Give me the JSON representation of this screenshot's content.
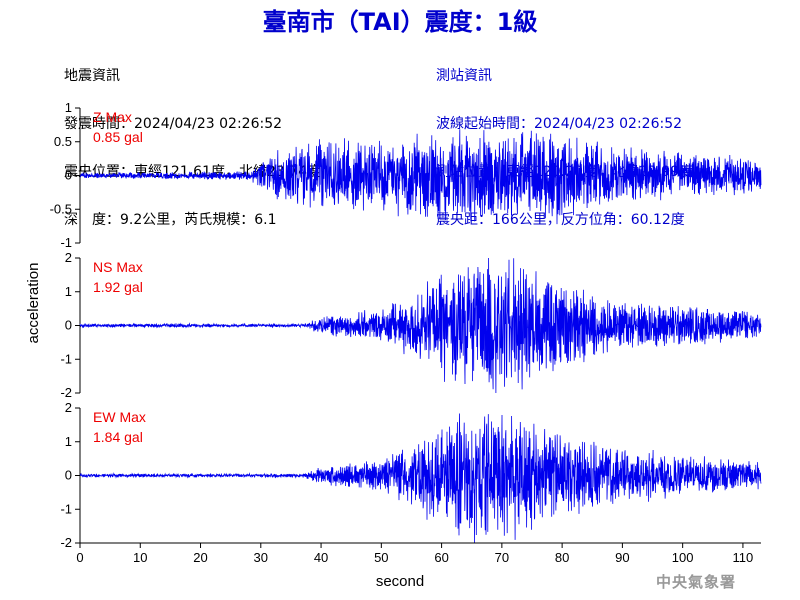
{
  "title": "臺南市（TAI）震度：1級",
  "earthquake_info": {
    "heading": "地震資訊",
    "origin_time": "發震時間：2024/04/23 02:26:52",
    "epicenter": "震央位置：東經121.61度，北緯23.74度",
    "depth_magnitude": "深　度：9.2公里，芮氏規模：6.1"
  },
  "station_info": {
    "heading": "測站資訊",
    "arrival_time": "波線起始時間：2024/04/23 02:26:52",
    "location": "測站位置：東經120.20度，北緯22.99度",
    "distance": "震央距：166公里，反方位角：60.12度"
  },
  "footer": "中央氣象署",
  "colors": {
    "title": "#0000cc",
    "trace": "#0000ee",
    "max_label": "#ee0000",
    "axis": "#000000",
    "footer": "#999999"
  },
  "chart_data": {
    "type": "line",
    "xlabel": "second",
    "ylabel": "acceleration",
    "xlim": [
      0,
      113
    ],
    "xticks": [
      0,
      10,
      20,
      30,
      40,
      50,
      60,
      70,
      80,
      90,
      100,
      110
    ],
    "panels": [
      {
        "name": "Z",
        "max_label": "Z Max",
        "max_value": "0.85 gal",
        "ylim": [
          -1,
          1
        ],
        "yticks": [
          1,
          0.5,
          0,
          -0.5,
          -1
        ],
        "ytick_labels": [
          "1",
          "0.5",
          "0",
          "-0.5",
          "-1"
        ],
        "envelope": {
          "t": [
            0,
            28,
            33,
            40,
            50,
            60,
            70,
            78,
            88,
            100,
            113
          ],
          "amp": [
            0.03,
            0.05,
            0.28,
            0.4,
            0.4,
            0.5,
            0.55,
            0.55,
            0.35,
            0.25,
            0.2
          ]
        }
      },
      {
        "name": "NS",
        "max_label": "NS Max",
        "max_value": "1.92 gal",
        "ylim": [
          -2,
          2
        ],
        "yticks": [
          2,
          1,
          0,
          -1,
          -2
        ],
        "ytick_labels": [
          "2",
          "1",
          "0",
          "-1",
          "-2"
        ],
        "envelope": {
          "t": [
            0,
            37,
            40,
            50,
            56,
            62,
            67,
            72,
            80,
            88,
            100,
            113
          ],
          "amp": [
            0.04,
            0.04,
            0.2,
            0.35,
            0.8,
            1.3,
            1.6,
            1.5,
            1.0,
            0.6,
            0.45,
            0.3
          ]
        }
      },
      {
        "name": "EW",
        "max_label": "EW Max",
        "max_value": "1.84 gal",
        "ylim": [
          -2,
          2
        ],
        "yticks": [
          2,
          1,
          0,
          -1,
          -2
        ],
        "ytick_labels": [
          "2",
          "1",
          "0",
          "-1",
          "-2"
        ],
        "envelope": {
          "t": [
            0,
            37,
            40,
            50,
            56,
            62,
            67,
            72,
            80,
            88,
            100,
            113
          ],
          "amp": [
            0.04,
            0.04,
            0.2,
            0.35,
            0.85,
            1.3,
            1.6,
            1.45,
            1.0,
            0.65,
            0.45,
            0.3
          ]
        }
      }
    ]
  }
}
